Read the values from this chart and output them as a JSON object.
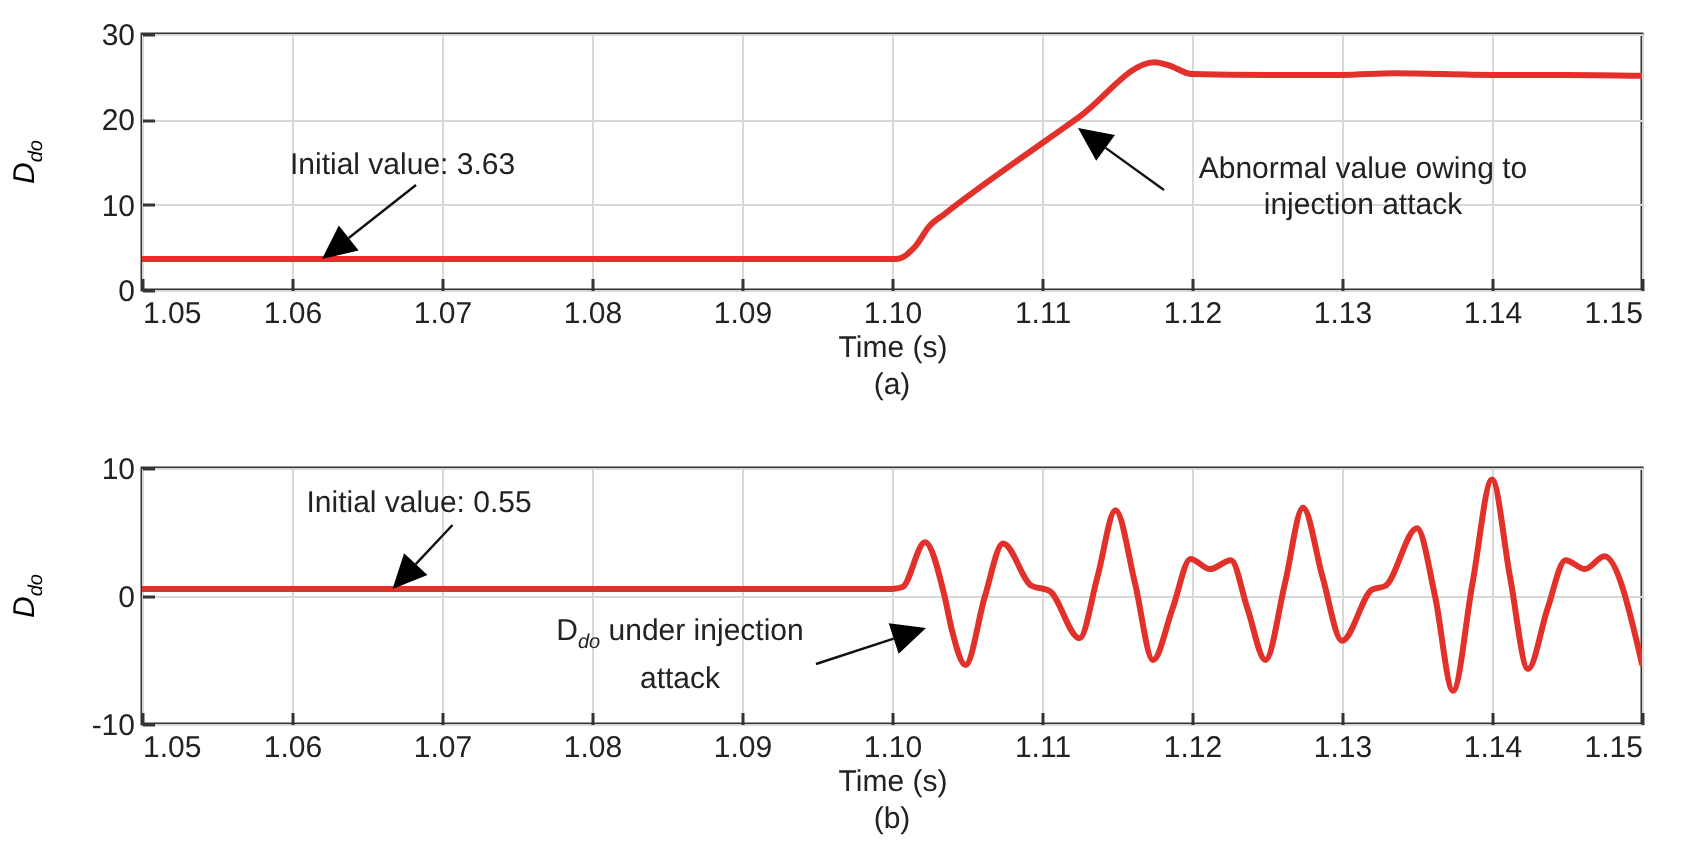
{
  "chart_data": [
    {
      "type": "line",
      "x": [
        1.05,
        1.1,
        1.1005,
        1.1015,
        1.1025,
        1.1035,
        1.11,
        1.1125,
        1.1175,
        1.1185,
        1.12,
        1.125,
        1.13,
        1.1335,
        1.14,
        1.145,
        1.15
      ],
      "series": [
        {
          "color": "#e2302a",
          "values": [
            3.63,
            3.63,
            3.7,
            5.0,
            7.5,
            8.9,
            17.2,
            20.3,
            26.7,
            26.3,
            25.3,
            25.2,
            25.2,
            25.4,
            25.2,
            25.2,
            25.1
          ]
        }
      ],
      "xlim": [
        1.05,
        1.15
      ],
      "ylim": [
        0,
        30
      ],
      "xticks": [
        1.05,
        1.06,
        1.07,
        1.08,
        1.09,
        {
          "value": 1.1,
          "label": "1.10"
        },
        1.11,
        1.12,
        1.13,
        1.14,
        1.15
      ],
      "yticks": [
        0,
        10,
        20,
        30
      ],
      "grid": true,
      "xlabel": "Time (s)",
      "ylabel": "D$_{do}$",
      "title": "(a)",
      "annotations": [
        {
          "text": "Initial value: 3.63",
          "x": 1.062,
          "y": 3.63
        },
        "Abnormal value owing to injection attack"
      ]
    },
    {
      "type": "line",
      "x": [
        1.05,
        1.1,
        1.1007,
        1.1022,
        1.1035,
        1.104,
        1.1049,
        1.1062,
        1.1074,
        1.1093,
        1.1105,
        1.1125,
        1.1137,
        1.1149,
        1.1162,
        1.1174,
        1.1187,
        1.1199,
        1.1212,
        1.1226,
        1.1237,
        1.1249,
        1.1262,
        1.1274,
        1.1287,
        1.13,
        1.132,
        1.1329,
        1.135,
        1.1362,
        1.1374,
        1.1387,
        1.14,
        1.1412,
        1.1424,
        1.1437,
        1.1449,
        1.1462,
        1.1475,
        1.15
      ],
      "series": [
        {
          "color": "#e2302a",
          "values": [
            0.55,
            0.55,
            0.7,
            4.2,
            0,
            -2.7,
            -5.4,
            0,
            4.1,
            0.8,
            0.4,
            -3.3,
            1.5,
            6.7,
            1,
            -5.0,
            -1,
            2.9,
            2.1,
            2.8,
            -1,
            -5.0,
            1,
            6.9,
            1.5,
            -3.5,
            0.5,
            0.8,
            5.3,
            0,
            -7.4,
            1,
            9.1,
            1.5,
            -5.7,
            -1,
            2.8,
            2.1,
            3.1,
            -5.3
          ]
        }
      ],
      "xlim": [
        1.05,
        1.15
      ],
      "ylim": [
        -10,
        10
      ],
      "xticks": [
        1.05,
        1.06,
        1.07,
        1.08,
        1.09,
        {
          "value": 1.1,
          "label": "1.10"
        },
        1.11,
        1.12,
        1.13,
        1.14,
        1.15
      ],
      "yticks": [
        -10,
        0,
        10
      ],
      "grid": true,
      "xlabel": "Time (s)",
      "ylabel": "D$_{do}$",
      "title": "(b)",
      "annotations": [
        {
          "text": "Initial value: 0.55",
          "x": 1.0667,
          "y": 0.55
        },
        "D$_{do}$ under injection attack"
      ]
    }
  ]
}
